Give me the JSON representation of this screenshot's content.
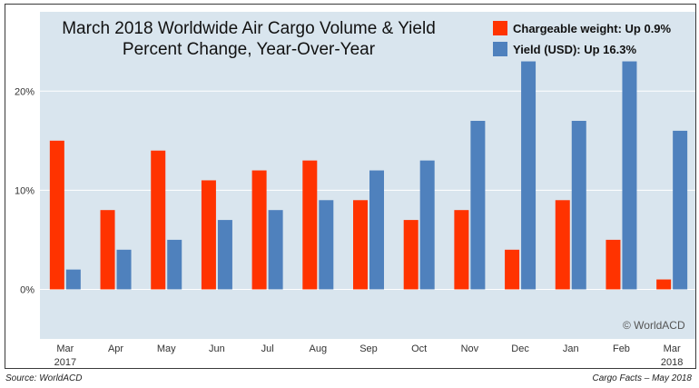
{
  "footer": {
    "source": "Source: WorldACD",
    "credit": "Cargo Facts – May 2018"
  },
  "watermark": "© WorldACD",
  "colors": {
    "plot_background": "#d9e5ee",
    "chargeable_weight": "#ff3300",
    "yield": "#4f81bd"
  },
  "chart_data": {
    "type": "bar",
    "title": [
      "March 2018 Worldwide Air Cargo Volume & Yield",
      "Percent Change, Year-Over-Year"
    ],
    "categories": [
      "Mar",
      "Apr",
      "May",
      "Jun",
      "Jul",
      "Aug",
      "Sep",
      "Oct",
      "Nov",
      "Dec",
      "Jan",
      "Feb",
      "Mar"
    ],
    "year_labels": [
      {
        "index": 0,
        "label": "2017"
      },
      {
        "index": 12,
        "label": "2018"
      }
    ],
    "series": [
      {
        "name": "Chargeable weight: Up 0.9%",
        "color": "#ff3300",
        "values": [
          15,
          8,
          14,
          11,
          12,
          13,
          9,
          7,
          8,
          4,
          9,
          5,
          1
        ]
      },
      {
        "name": "Yield (USD): Up 16.3%",
        "color": "#4f81bd",
        "values": [
          2,
          4,
          5,
          7,
          8,
          9,
          12,
          13,
          17,
          23,
          17,
          23,
          16
        ]
      }
    ],
    "ylim": [
      -5,
      28
    ],
    "yticks": [
      0,
      10,
      20
    ],
    "ytick_labels": [
      "0%",
      "10%",
      "20%"
    ],
    "xlabel": "",
    "ylabel": "",
    "legend_position": "top-right",
    "grid": true
  }
}
